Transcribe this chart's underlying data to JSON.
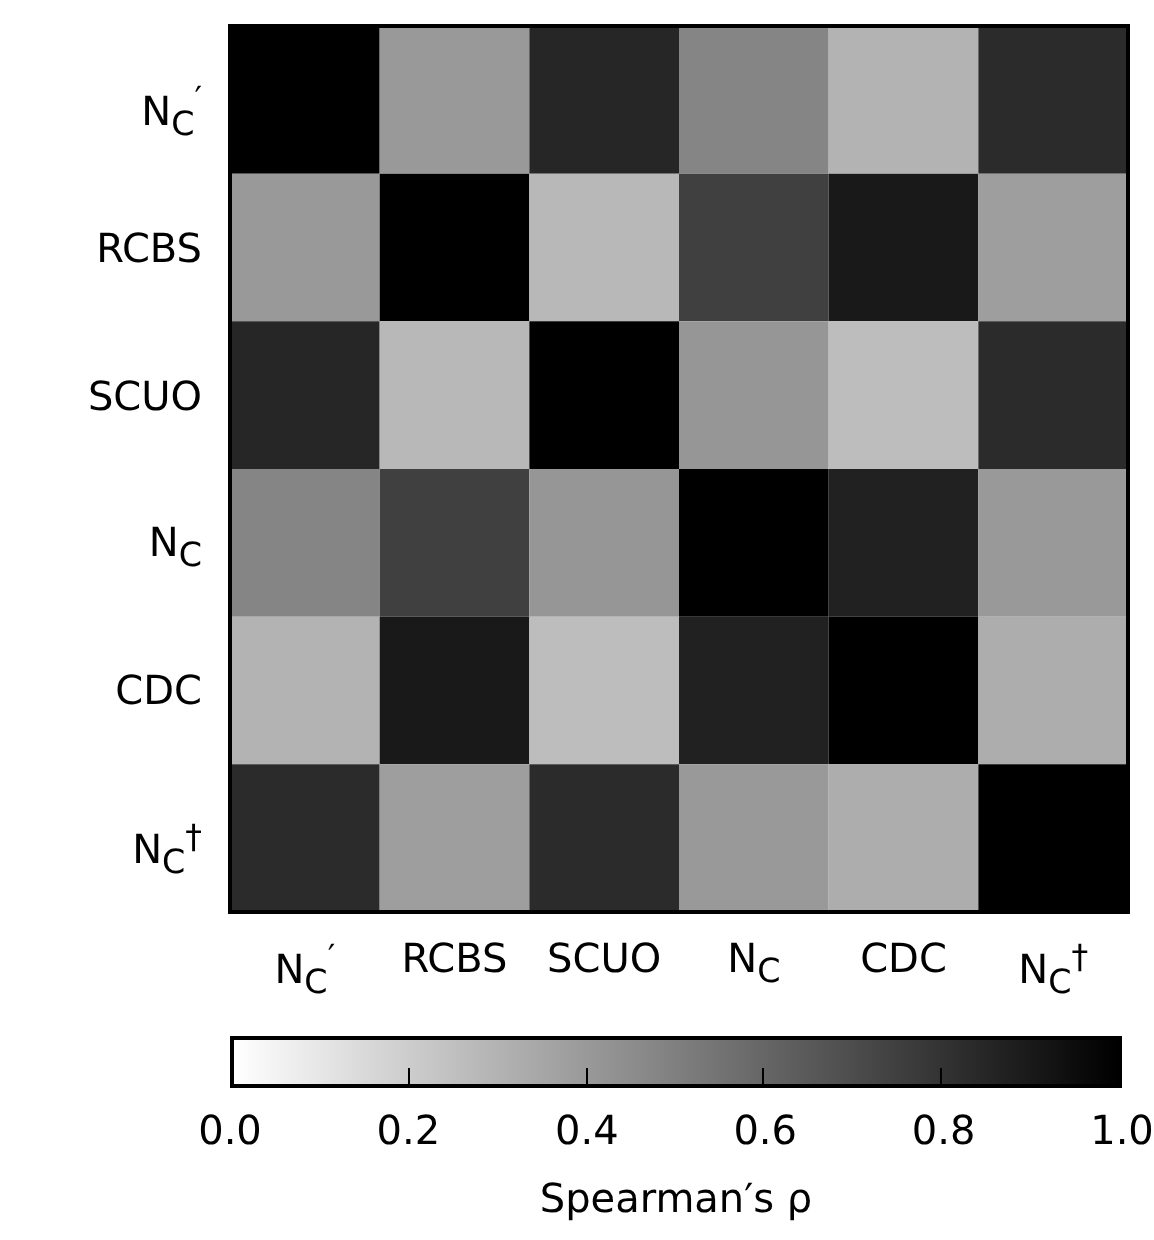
{
  "chart_data": {
    "type": "heatmap",
    "clabel": "Spearman′s ρ",
    "categories": [
      "N$_{C}$$^{′}$",
      "RCBS",
      "SCUO",
      "N$_{C}$",
      "CDC",
      "N$_{C}$$^{†}$"
    ],
    "y_categories": [
      "N$_{C}$$^{′}$",
      "RCBS",
      "SCUO",
      "N$_{C}$",
      "CDC",
      "N$_{C}$$^{†}$"
    ],
    "cells": [
      [
        1,
        0.4,
        0.85,
        0.48,
        0.3,
        0.83
      ],
      [
        0.4,
        1,
        0.28,
        0.75,
        0.9,
        0.38
      ],
      [
        0.85,
        0.28,
        1,
        0.41,
        0.26,
        0.83
      ],
      [
        0.48,
        0.75,
        0.41,
        1,
        0.87,
        0.4
      ],
      [
        0.3,
        0.9,
        0.26,
        0.87,
        1,
        0.32
      ],
      [
        0.83,
        0.38,
        0.83,
        0.4,
        0.32,
        1
      ]
    ],
    "clim": [
      0,
      1
    ],
    "cticks": [
      {
        "value": 0,
        "label": "0.0"
      },
      {
        "value": 0.2,
        "label": "0.2"
      },
      {
        "value": 0.4,
        "label": "0.4"
      },
      {
        "value": 0.6,
        "label": "0.6"
      },
      {
        "value": 0.8,
        "label": "0.8"
      },
      {
        "value": 1,
        "label": "1.0"
      }
    ]
  }
}
